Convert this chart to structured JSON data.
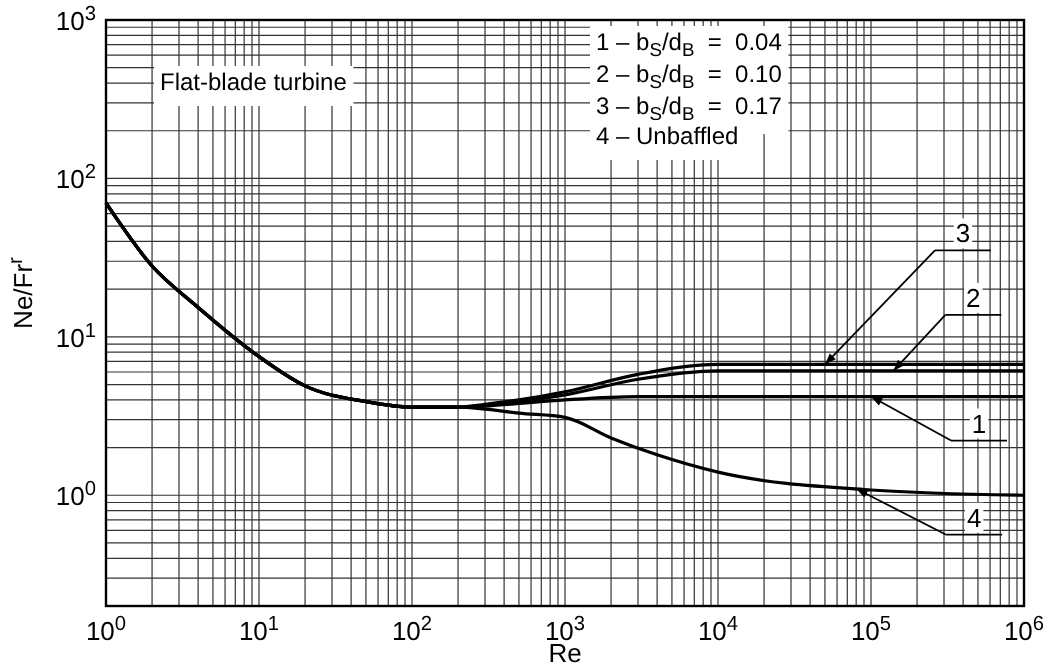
{
  "chart_data": {
    "type": "line",
    "xlabel": "Re",
    "ylabel": "Ne/Fr$^{r}$",
    "log": "xy",
    "grid": true,
    "marker": "none",
    "line_style": "solid",
    "xlim": [
      1,
      1000000
    ],
    "xticks": [
      {
        "value": 1,
        "label": "10$^{0}$"
      },
      {
        "value": 10,
        "label": "10$^{1}$"
      },
      {
        "value": 100,
        "label": "10$^{2}$"
      },
      {
        "value": 1000,
        "label": "10$^{3}$"
      },
      {
        "value": 10000,
        "label": "10$^{4}$"
      },
      {
        "value": 100000,
        "label": "10$^{5}$"
      },
      {
        "value": 1000000,
        "label": "10$^{6}$"
      }
    ],
    "ylim": [
      0.2,
      1000
    ],
    "yticks": [
      {
        "value": 1,
        "label": "10$^{0}$"
      },
      {
        "value": 10,
        "label": "10$^{1}$"
      },
      {
        "value": 100,
        "label": "10$^{2}$"
      },
      {
        "value": 1000,
        "label": "10$^{3}$"
      }
    ],
    "series": [
      {
        "color": "#000000",
        "x": [
          1,
          2,
          3.8,
          10,
          20,
          50,
          100,
          200,
          300,
          500,
          1000,
          3000,
          10000,
          100000,
          1000000
        ],
        "values": [
          70,
          28,
          16,
          7.5,
          4.9,
          3.9,
          3.6,
          3.6,
          3.65,
          3.8,
          4.0,
          4.2,
          4.2,
          4.2,
          4.2
        ]
      },
      {
        "color": "#000000",
        "x": [
          1,
          2,
          3.8,
          10,
          20,
          50,
          100,
          200,
          300,
          500,
          1000,
          3000,
          10000,
          100000,
          1000000
        ],
        "values": [
          70,
          28,
          16,
          7.5,
          4.9,
          3.9,
          3.6,
          3.6,
          3.7,
          3.9,
          4.3,
          5.4,
          6.1,
          6.1,
          6.1
        ]
      },
      {
        "color": "#000000",
        "x": [
          1,
          2,
          3.8,
          10,
          20,
          50,
          100,
          200,
          300,
          500,
          1000,
          3000,
          10000,
          100000,
          1000000
        ],
        "values": [
          70,
          28,
          16,
          7.5,
          4.9,
          3.9,
          3.6,
          3.6,
          3.75,
          4.0,
          4.5,
          5.8,
          6.7,
          6.7,
          6.7
        ]
      },
      {
        "color": "#000000",
        "x": [
          1,
          2,
          3.8,
          10,
          20,
          50,
          100,
          200,
          300,
          500,
          1000,
          2000,
          4000,
          10000,
          100000,
          1000000
        ],
        "values": [
          70,
          28,
          16,
          7.5,
          4.9,
          3.9,
          3.6,
          3.6,
          3.5,
          3.3,
          3.1,
          2.3,
          1.8,
          1.4,
          1.08,
          1.0
        ]
      }
    ],
    "annotations": [
      "Flat-blade turbine",
      "1 – b$_{S}$/d$_{B}$  =  0.04",
      "2 – b$_{S}$/d$_{B}$  =  0.10",
      "3 – b$_{S}$/d$_{B}$  =  0.17",
      "4 – Unbaffled",
      {
        "text": "3",
        "x": 50000,
        "y": 6.7
      },
      {
        "text": "2",
        "x": 140000,
        "y": 6.1
      },
      {
        "text": "1",
        "x": 100000,
        "y": 4.2
      },
      {
        "text": "4",
        "x": 80000,
        "y": 1.1
      }
    ]
  }
}
